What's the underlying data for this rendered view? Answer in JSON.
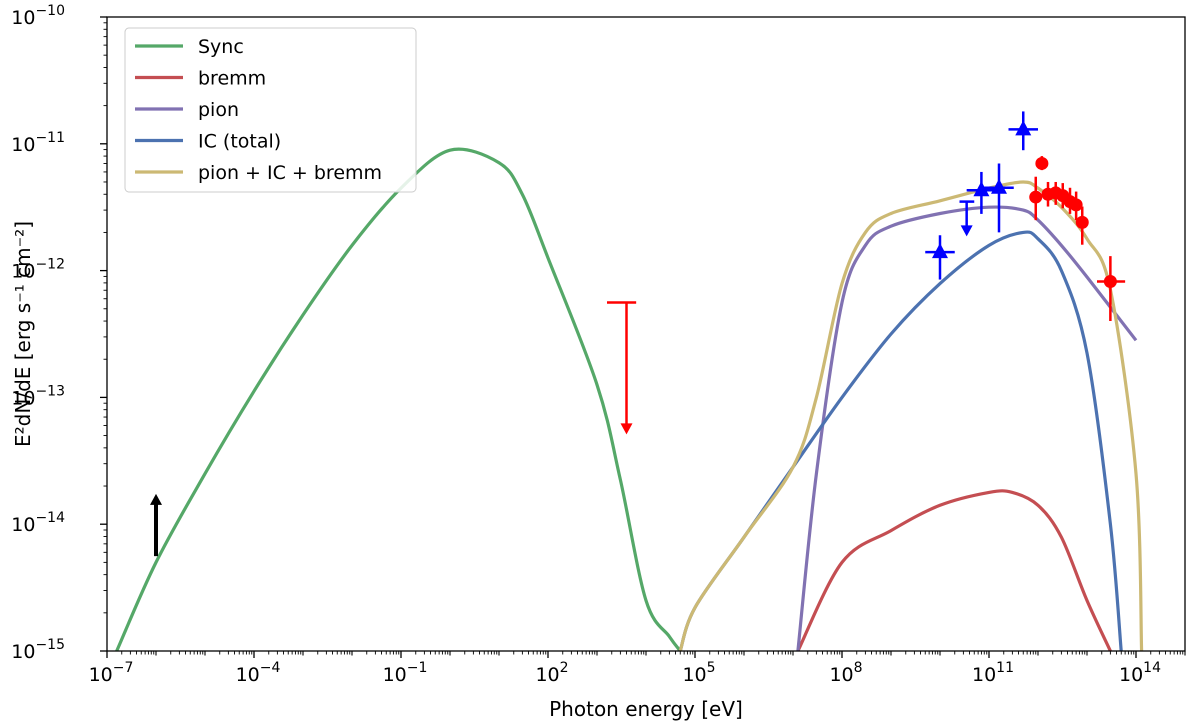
{
  "chart_data": {
    "type": "line",
    "xscale": "log",
    "yscale": "log",
    "xlim": [
      1e-07,
      1000000000000000.0
    ],
    "ylim": [
      1e-15,
      1e-10
    ],
    "xlabel": "Photon energy [eV]",
    "ylabel": "E²dN/dE [erg s⁻¹ cm⁻²]",
    "xticks": [
      {
        "value": 1e-07,
        "base": "10",
        "exp": "−7"
      },
      {
        "value": 0.0001,
        "base": "10",
        "exp": "−4"
      },
      {
        "value": 0.1,
        "base": "10",
        "exp": "−1"
      },
      {
        "value": 100.0,
        "base": "10",
        "exp": "2"
      },
      {
        "value": 100000.0,
        "base": "10",
        "exp": "5"
      },
      {
        "value": 100000000.0,
        "base": "10",
        "exp": "8"
      },
      {
        "value": 100000000000.0,
        "base": "10",
        "exp": "11"
      },
      {
        "value": 100000000000000.0,
        "base": "10",
        "exp": "14"
      }
    ],
    "yticks": [
      {
        "value": 1e-15,
        "base": "10",
        "exp": "−15"
      },
      {
        "value": 1e-14,
        "base": "10",
        "exp": "−14"
      },
      {
        "value": 1e-13,
        "base": "10",
        "exp": "−13"
      },
      {
        "value": 1e-12,
        "base": "10",
        "exp": "−12"
      },
      {
        "value": 1e-11,
        "base": "10",
        "exp": "−11"
      },
      {
        "value": 1e-10,
        "base": "10",
        "exp": "−10"
      }
    ],
    "legend_position": "top-left",
    "series": [
      {
        "name": "Sync",
        "color": "#55a868",
        "x": [
          1.58e-07,
          1e-06,
          1e-05,
          0.0001,
          0.001,
          0.01,
          0.1,
          1,
          10,
          30,
          100,
          1000,
          3000,
          10000.0,
          30000.0,
          50000.0
        ],
        "y": [
          1e-15,
          5e-15,
          2.5e-14,
          1.12e-13,
          4.47e-13,
          1.58e-12,
          4.47e-12,
          8.9e-12,
          7.1e-12,
          3.98e-12,
          1.26e-12,
          1.26e-13,
          2.24e-14,
          2.5e-15,
          1.3e-15,
          1e-15
        ]
      },
      {
        "name": "bremm",
        "color": "#c44e52",
        "x": [
          12600000.0,
          100000000.0,
          1000000000.0,
          10000000000.0,
          100000000000.0,
          300000000000.0,
          1000000000000.0,
          3000000000000.0,
          10000000000000.0,
          30000000000000.0
        ],
        "y": [
          1e-15,
          5e-15,
          8.9e-15,
          1.41e-14,
          1.78e-14,
          1.78e-14,
          1.41e-14,
          7.9e-15,
          2.5e-15,
          1e-15
        ]
      },
      {
        "name": "pion",
        "color": "#8172b2",
        "x": [
          12600000.0,
          30000000.0,
          100000000.0,
          300000000.0,
          1000000000.0,
          10000000000.0,
          100000000000.0,
          500000000000.0,
          1000000000000.0,
          3000000000000.0,
          10000000000000.0,
          100000000000000.0
        ],
        "y": [
          1e-15,
          2.5e-14,
          5.6e-13,
          1.58e-12,
          2.24e-12,
          2.82e-12,
          3.16e-12,
          3e-12,
          2.5e-12,
          1.58e-12,
          8.9e-13,
          2.82e-13
        ]
      },
      {
        "name": "IC (total)",
        "color": "#4c72b0",
        "x": [
          50000.0,
          100000.0,
          1000000.0,
          10000000.0,
          100000000.0,
          1000000000.0,
          10000000000.0,
          100000000000.0,
          500000000000.0,
          1000000000000.0,
          3000000000000.0,
          10000000000000.0,
          30000000000000.0,
          50000000000000.0
        ],
        "y": [
          1e-15,
          2.2e-15,
          7.9e-15,
          2.82e-14,
          1e-13,
          3.16e-13,
          7.9e-13,
          1.58e-12,
          2e-12,
          1.78e-12,
          1e-12,
          2.24e-13,
          1e-14,
          1e-15
        ]
      },
      {
        "name": "pion + IC + bremm",
        "color": "#ccb974",
        "x": [
          50000.0,
          100000.0,
          1000000.0,
          10000000.0,
          30000000.0,
          100000000.0,
          300000000.0,
          1000000000.0,
          10000000000.0,
          100000000000.0,
          500000000000.0,
          1000000000000.0,
          3000000000000.0,
          10000000000000.0,
          30000000000000.0,
          100000000000000.0,
          130000000000000.0
        ],
        "y": [
          1e-15,
          2.2e-15,
          7.9e-15,
          2.82e-14,
          1e-13,
          7.9e-13,
          2e-12,
          2.82e-12,
          3.55e-12,
          4.47e-12,
          5e-12,
          4.47e-12,
          3.16e-12,
          1.78e-12,
          7.1e-13,
          2.5e-14,
          1e-15
        ]
      }
    ],
    "upper_limits": [
      {
        "color": "#ff0000",
        "x": 4000.0,
        "y_high": 5.6e-13,
        "y_low": 5.5e-14,
        "xerr": [
          1600.0,
          6300.0
        ]
      },
      {
        "color": "#0000ff",
        "x": 35000000000.0,
        "y_high": 3.5e-12,
        "y_low": 2e-12,
        "xerr": [
          25000000000.0,
          50000000000.0
        ]
      }
    ],
    "lower_limits": [
      {
        "color": "#000000",
        "x": 1e-06,
        "y_low": 5.6e-15,
        "y_high": 1.5e-14
      }
    ],
    "blue_points": [
      {
        "x": 10000000000.0,
        "y": 1.4e-12,
        "xerr": [
          5000000000.0,
          20000000000.0
        ],
        "yerr": [
          8.5e-13,
          1.9e-12
        ]
      },
      {
        "x": 70000000000.0,
        "y": 4.3e-12,
        "xerr": [
          35000000000.0,
          140000000000.0
        ],
        "yerr": [
          2.8e-12,
          6e-12
        ]
      },
      {
        "x": 160000000000.0,
        "y": 4.5e-12,
        "xerr": [
          80000000000.0,
          320000000000.0
        ],
        "yerr": [
          2e-12,
          7e-12
        ]
      },
      {
        "x": 500000000000.0,
        "y": 1.3e-11,
        "xerr": [
          250000000000.0,
          1000000000000.0
        ],
        "yerr": [
          8.9e-12,
          1.8e-11
        ]
      }
    ],
    "red_points": [
      {
        "x": 900000000000.0,
        "y": 3.8e-12,
        "xerr": [
          700000000000.0,
          1100000000000.0
        ],
        "yerr": [
          2.5e-12,
          5.5e-12
        ]
      },
      {
        "x": 1200000000000.0,
        "y": 7e-12,
        "xerr": [
          1000000000000.0,
          1400000000000.0
        ],
        "yerr": [
          6.2e-12,
          8e-12
        ]
      },
      {
        "x": 1600000000000.0,
        "y": 4e-12,
        "xerr": [
          1300000000000.0,
          1900000000000.0
        ],
        "yerr": [
          3.2e-12,
          5e-12
        ]
      },
      {
        "x": 2300000000000.0,
        "y": 4.1e-12,
        "xerr": [
          1900000000000.0,
          2700000000000.0
        ],
        "yerr": [
          3.3e-12,
          5e-12
        ]
      },
      {
        "x": 3200000000000.0,
        "y": 3.9e-12,
        "xerr": [
          2700000000000.0,
          3800000000000.0
        ],
        "yerr": [
          3.1e-12,
          4.9e-12
        ]
      },
      {
        "x": 4500000000000.0,
        "y": 3.5e-12,
        "xerr": [
          3800000000000.0,
          5300000000000.0
        ],
        "yerr": [
          2.8e-12,
          4.5e-12
        ]
      },
      {
        "x": 6000000000000.0,
        "y": 3.3e-12,
        "xerr": [
          5200000000000.0,
          7000000000000.0
        ],
        "yerr": [
          2.5e-12,
          4.2e-12
        ]
      },
      {
        "x": 8000000000000.0,
        "y": 2.4e-12,
        "xerr": [
          7000000000000.0,
          9500000000000.0
        ],
        "yerr": [
          1.6e-12,
          3.2e-12
        ]
      },
      {
        "x": 30000000000000.0,
        "y": 8.2e-13,
        "xerr": [
          16000000000000.0,
          60000000000000.0
        ],
        "yerr": [
          4e-13,
          1.3e-12
        ]
      }
    ]
  }
}
